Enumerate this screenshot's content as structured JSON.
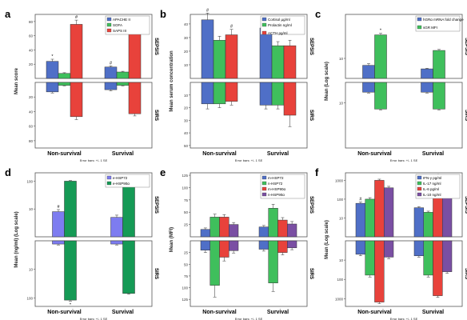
{
  "figure": {
    "error_bar_note": "Error bars: +/- 1 SE",
    "top_label": "SEPSIS",
    "bottom_label": "SIRS",
    "x_categories": [
      "Non-survival",
      "Survival"
    ]
  },
  "chart_data": [
    {
      "panel": "a",
      "type": "bar",
      "scale": "linear",
      "ylabel": "Mean score",
      "categories": [
        "Non-survival",
        "Survival"
      ],
      "top_ticks": [
        20,
        40,
        60,
        80
      ],
      "bottom_ticks": [
        20,
        40,
        60,
        80
      ],
      "top_max": 90,
      "bottom_max": 90,
      "series": [
        {
          "name": "APACHE II",
          "color": "#4f6fc7",
          "top": [
            24,
            16
          ],
          "top_err": [
            3,
            1.5
          ],
          "bottom": [
            13,
            10
          ],
          "bottom_err": [
            1.5,
            1.5
          ]
        },
        {
          "name": "SOFA",
          "color": "#3fbf5c",
          "top": [
            7,
            9
          ],
          "top_err": [
            1,
            1
          ],
          "bottom": [
            4,
            4
          ],
          "bottom_err": [
            0.7,
            0.7
          ]
        },
        {
          "name": "SAPS III",
          "color": "#e8423b",
          "top": [
            76,
            65
          ],
          "top_err": [
            6,
            3
          ],
          "bottom": [
            47,
            43
          ],
          "bottom_err": [
            4,
            3
          ]
        }
      ],
      "marks": [
        {
          "series": 0,
          "cat": 0,
          "text": "*"
        },
        {
          "series": 2,
          "cat": 0,
          "text": "#"
        },
        {
          "series": 0,
          "cat": 1,
          "text": "#"
        },
        {
          "series": 2,
          "cat": 1,
          "text": "#"
        }
      ],
      "grid": false
    },
    {
      "panel": "b",
      "type": "bar",
      "scale": "linear",
      "ylabel": "Mean serum concentration",
      "categories": [
        "Non-survival",
        "Survival"
      ],
      "top_ticks": [
        10,
        20,
        30,
        40
      ],
      "bottom_ticks": [
        10,
        20,
        30,
        40,
        50
      ],
      "top_max": 47,
      "bottom_max": 52,
      "series": [
        {
          "name": "Cortisol µg/ml",
          "color": "#4f6fc7",
          "top": [
            43,
            37
          ],
          "top_err": [
            5,
            4
          ],
          "bottom": [
            17,
            18
          ],
          "bottom_err": [
            4,
            3
          ]
        },
        {
          "name": "Prolactin ng/ml",
          "color": "#3fbf5c",
          "top": [
            28,
            24
          ],
          "top_err": [
            3,
            3
          ],
          "bottom": [
            17,
            18
          ],
          "bottom_err": [
            3,
            3
          ]
        },
        {
          "name": "ACTH pg/ml",
          "color": "#e8423b",
          "top": [
            32,
            24
          ],
          "top_err": [
            4,
            4
          ],
          "bottom": [
            15,
            26
          ],
          "bottom_err": [
            3,
            9
          ]
        }
      ],
      "marks": [
        {
          "series": 0,
          "cat": 0,
          "text": "#"
        },
        {
          "series": 2,
          "cat": 0,
          "text": "#"
        },
        {
          "series": 0,
          "cat": 1,
          "text": "#"
        }
      ],
      "grid": false
    },
    {
      "panel": "c",
      "type": "bar",
      "scale": "log",
      "ylabel": "Mean (Log scale)",
      "categories": [
        "Non-survival",
        "Survival"
      ],
      "top_ticks": [
        10
      ],
      "bottom_ticks": [
        10
      ],
      "top_tick_labels": [
        "10"
      ],
      "bottom_tick_labels": [
        "10"
      ],
      "top_max": 3.2,
      "bottom_max": 3.2,
      "series": [
        {
          "name": "hGRα mRNA fold change",
          "color": "#4f6fc7",
          "top": [
            4.5,
            3.0
          ],
          "top_err": [
            1.0,
            0.2
          ],
          "bottom": [
            3.0,
            3.0
          ],
          "bottom_err": [
            0.3,
            0.3
          ]
        },
        {
          "name": "sGR MFI",
          "color": "#3fbf5c",
          "top": [
            150,
            25
          ],
          "top_err": [
            30,
            3
          ],
          "bottom": [
            20,
            20
          ],
          "bottom_err": [
            2,
            2
          ]
        }
      ],
      "marks": [
        {
          "series": 1,
          "cat": 0,
          "text": "*"
        }
      ],
      "grid": false
    },
    {
      "panel": "d",
      "type": "bar",
      "scale": "log",
      "ylabel": "Mean (ng/ml) (Log scale)",
      "categories": [
        "Non-survival",
        "Survival"
      ],
      "top_ticks": [
        10,
        100
      ],
      "bottom_ticks": [
        10,
        100
      ],
      "top_tick_labels": [
        "10",
        "100"
      ],
      "bottom_tick_labels": [
        "10",
        "100"
      ],
      "top_max": 2.3,
      "bottom_max": 2.3,
      "series": [
        {
          "name": "e-HSP72",
          "color": "#7d7cf0",
          "top": [
            8,
            5
          ],
          "top_err": [
            1.5,
            1
          ],
          "bottom": [
            1.3,
            1.3
          ],
          "bottom_err": [
            0.1,
            0.1
          ]
        },
        {
          "name": "e-HSP90α",
          "color": "#159a55",
          "top": [
            100,
            100
          ],
          "top_err": [
            5,
            5
          ],
          "bottom": [
            120,
            70
          ],
          "bottom_err": [
            10,
            5
          ]
        }
      ],
      "marks": [
        {
          "series": 0,
          "cat": 0,
          "text": "#"
        },
        {
          "series": 1,
          "cat": 1,
          "text": "#"
        }
      ],
      "bottom_marks": [
        {
          "series": 1,
          "cat": 0,
          "text": "*"
        }
      ],
      "grid": false
    },
    {
      "panel": "e",
      "type": "bar",
      "scale": "linear",
      "ylabel": "Mean (MFI)",
      "categories": [
        "Non-survival",
        "Survival"
      ],
      "top_ticks": [
        25,
        50,
        75,
        100,
        125
      ],
      "bottom_ticks": [
        25,
        50,
        75,
        100,
        125
      ],
      "top_max": 130,
      "bottom_max": 140,
      "series": [
        {
          "name": "m-HSP72",
          "color": "#4f6fc7",
          "top": [
            15,
            20
          ],
          "top_err": [
            3,
            3
          ],
          "bottom": [
            20,
            18
          ],
          "bottom_err": [
            5,
            4
          ]
        },
        {
          "name": "n-HSP72",
          "color": "#3fbf5c",
          "top": [
            40,
            58
          ],
          "top_err": [
            6,
            8
          ],
          "bottom": [
            95,
            90
          ],
          "bottom_err": [
            25,
            18
          ]
        },
        {
          "name": "m-HSP90α",
          "color": "#e8423b",
          "top": [
            40,
            34
          ],
          "top_err": [
            5,
            5
          ],
          "bottom": [
            35,
            25
          ],
          "bottom_err": [
            8,
            5
          ]
        },
        {
          "name": "n-HSP90α",
          "color": "#7a4fa3",
          "top": [
            25,
            26
          ],
          "top_err": [
            4,
            5
          ],
          "bottom": [
            21,
            15
          ],
          "bottom_err": [
            5,
            4
          ]
        }
      ],
      "marks": [],
      "grid": false
    },
    {
      "panel": "f",
      "type": "bar",
      "scale": "log",
      "ylabel": "Mean (Log scale)",
      "categories": [
        "Non-survival",
        "Survival"
      ],
      "top_ticks": [
        10,
        100,
        1000
      ],
      "bottom_ticks": [
        10,
        100,
        1000
      ],
      "top_tick_labels": [
        "10",
        "100",
        "1000"
      ],
      "bottom_tick_labels": [
        "10",
        "100",
        "1000"
      ],
      "top_max": 3.4,
      "bottom_max": 3.4,
      "series": [
        {
          "name": "IFN-γ pg/ml",
          "color": "#4f6fc7",
          "top": [
            60,
            35
          ],
          "top_err": [
            10,
            5
          ],
          "bottom": [
            5,
            6
          ],
          "bottom_err": [
            1,
            1
          ]
        },
        {
          "name": "IL-17 ng/ml",
          "color": "#3fbf5c",
          "top": [
            100,
            20
          ],
          "top_err": [
            20,
            3
          ],
          "bottom": [
            60,
            60
          ],
          "bottom_err": [
            15,
            15
          ]
        },
        {
          "name": "IL-6 pg/ml",
          "color": "#e8423b",
          "top": [
            1000,
            1000
          ],
          "top_err": [
            150,
            200
          ],
          "bottom": [
            1500,
            700
          ],
          "bottom_err": [
            300,
            150
          ]
        },
        {
          "name": "IL-10 ng/ml",
          "color": "#7a4fa3",
          "top": [
            400,
            150
          ],
          "top_err": [
            80,
            30
          ],
          "bottom": [
            7,
            40
          ],
          "bottom_err": [
            1.5,
            8
          ]
        }
      ],
      "marks": [
        {
          "series": 0,
          "cat": 0,
          "text": "#"
        },
        {
          "series": 2,
          "cat": 1,
          "text": "#"
        },
        {
          "series": 3,
          "cat": 1,
          "text": "#"
        }
      ],
      "grid": false
    }
  ]
}
